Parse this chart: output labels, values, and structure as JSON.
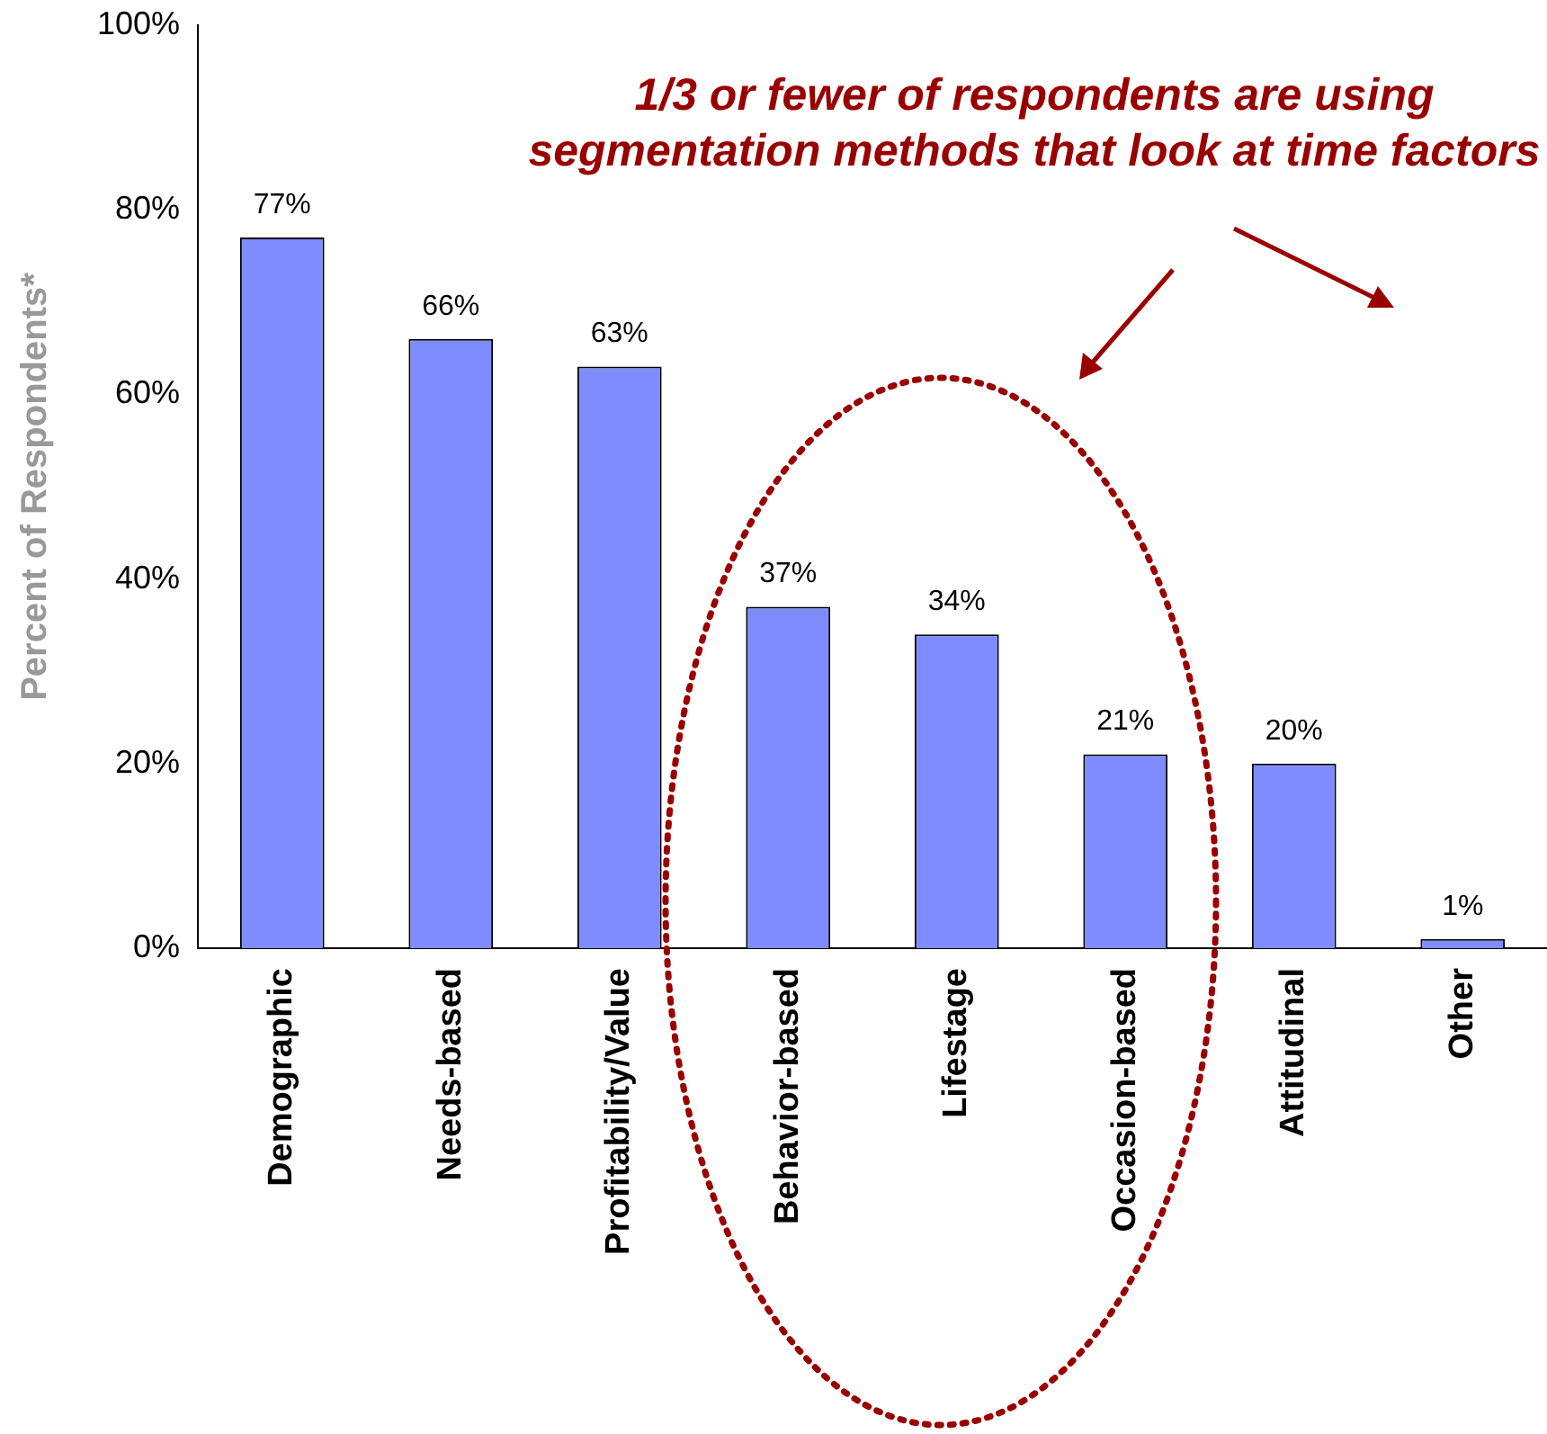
{
  "chart_data": {
    "type": "bar",
    "ylabel": "Percent of Respondents*",
    "categories": [
      "Demographic",
      "Needs-based",
      "Profitability/Value",
      "Behavior-based",
      "Lifestage",
      "Occasion-based",
      "Attitudinal",
      "Other"
    ],
    "values": [
      77,
      66,
      63,
      37,
      34,
      21,
      20,
      1
    ],
    "value_labels": [
      "77%",
      "66%",
      "63%",
      "37%",
      "34%",
      "21%",
      "20%",
      "1%"
    ],
    "color": "#7f8cff",
    "ylim": [
      0,
      100
    ],
    "yticks": [
      {
        "value": 0,
        "label": "0%"
      },
      {
        "value": 20,
        "label": "20%"
      },
      {
        "value": 40,
        "label": "40%"
      },
      {
        "value": 60,
        "label": "60%"
      },
      {
        "value": 80,
        "label": "80%"
      },
      {
        "value": 100,
        "label": "100%"
      }
    ],
    "annotations": [
      "1/3 or fewer of respondents are using segmentation methods that look at time factors"
    ]
  }
}
